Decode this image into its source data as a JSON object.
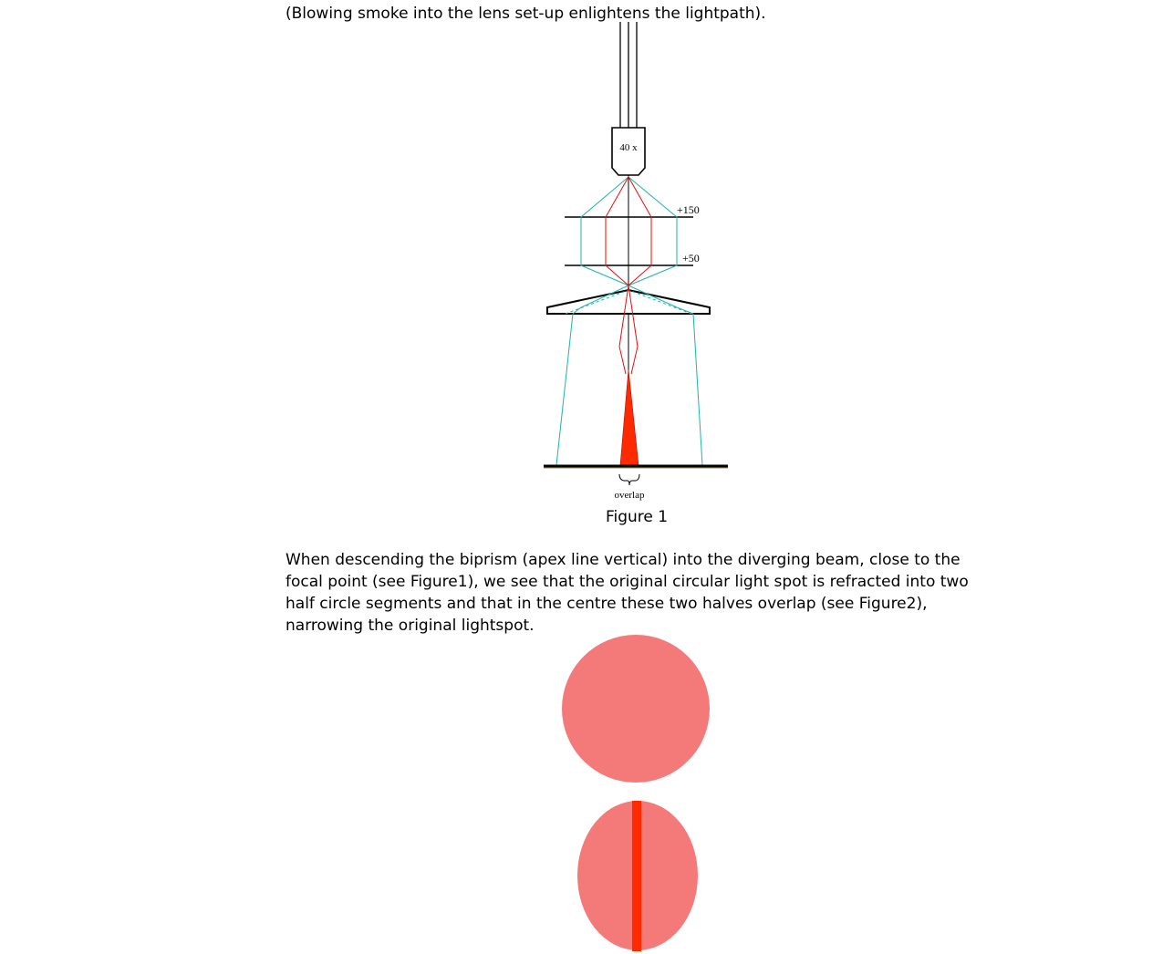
{
  "intro_text": "(Blowing smoke into the lens set-up enlightens the lightpath).",
  "figure1": {
    "objective_label": "40 x",
    "lens_top_label": "+150",
    "lens_bottom_label": "+50",
    "overlap_label": "overlap",
    "caption": "Figure 1",
    "colors": {
      "red_ray": "#e01010",
      "cyan_ray": "#20b2aa",
      "overlap_fill": "#ff2a00"
    }
  },
  "paragraph": {
    "lines": [
      "When descending the biprism (apex line vertical) into the diverging beam, close to the",
      "focal point (see Figure1), we see that the original circular light spot is refracted into two",
      "half circle segments and that in the centre these two halves overlap (see Figure2),",
      "narrowing the original lightspot."
    ]
  },
  "figure2": {
    "colors": {
      "spot_fill": "#f47a7a",
      "overlap_band": "#ff2a00"
    }
  }
}
